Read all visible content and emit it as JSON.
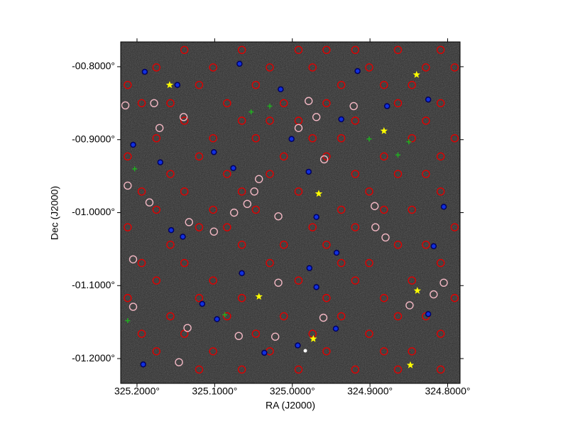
{
  "chart_data": {
    "type": "scatter",
    "x_label": "RA (J2000)",
    "y_label": "Dec (J2000)",
    "xlim": [
      325.221,
      324.784
    ],
    "ylim": [
      -1.234,
      -0.766
    ],
    "xticks": [
      {
        "value": 325.2,
        "label": "325.2000°"
      },
      {
        "value": 325.1,
        "label": "325.1000°"
      },
      {
        "value": 325.0,
        "label": "325.0000°"
      },
      {
        "value": 324.9,
        "label": "324.9000°"
      },
      {
        "value": 324.8,
        "label": "324.8000°"
      }
    ],
    "yticks": [
      {
        "value": -0.8,
        "label": "-00.8000°"
      },
      {
        "value": -0.9,
        "label": "-00.9000°"
      },
      {
        "value": -1.0,
        "label": "-01.0000°"
      },
      {
        "value": -1.1,
        "label": "-01.1000°"
      },
      {
        "value": -1.2,
        "label": "-01.2000°"
      }
    ],
    "background": "#2b2b2b",
    "series": [
      {
        "color": "#e00000",
        "marker": "circle-open",
        "x": [
          325.139,
          325.065,
          324.992,
          324.956,
          324.919,
          324.864,
          324.809,
          325.175,
          325.102,
          325.029,
          324.974,
          324.901,
          324.828,
          324.791,
          325.212,
          325.12,
          325.047,
          324.937,
          324.882,
          324.846,
          325.194,
          325.157,
          325.084,
          325.011,
          324.956,
          324.864,
          324.809,
          325.139,
          325.065,
          325.029,
          324.992,
          324.919,
          324.828,
          325.175,
          325.102,
          325.047,
          324.974,
          324.937,
          324.846,
          324.791,
          325.212,
          325.12,
          325.011,
          324.956,
          324.882,
          324.809,
          325.157,
          325.084,
          325.029,
          324.919,
          324.864,
          324.828,
          325.194,
          325.139,
          325.065,
          324.992,
          324.901,
          324.809,
          325.175,
          325.102,
          325.047,
          324.937,
          324.882,
          324.846,
          325.212,
          325.12,
          325.084,
          324.974,
          324.919,
          324.791,
          325.157,
          325.065,
          325.011,
          324.956,
          324.864,
          324.828,
          325.194,
          325.139,
          325.029,
          324.937,
          324.901,
          324.809,
          325.175,
          325.102,
          324.992,
          324.919,
          324.846,
          325.212,
          325.12,
          325.065,
          324.956,
          324.882,
          324.791,
          325.157,
          325.084,
          325.011,
          324.937,
          324.864,
          324.828,
          325.194,
          325.139,
          325.047,
          324.974,
          324.901,
          324.809,
          325.175,
          325.102,
          325.029,
          324.956,
          324.882,
          324.846,
          325.12,
          325.065,
          324.992,
          324.919,
          324.864,
          324.809
        ],
        "y": [
          -0.777,
          -0.777,
          -0.777,
          -0.777,
          -0.777,
          -0.777,
          -0.777,
          -0.801,
          -0.801,
          -0.801,
          -0.801,
          -0.801,
          -0.801,
          -0.801,
          -0.825,
          -0.825,
          -0.825,
          -0.825,
          -0.825,
          -0.825,
          -0.85,
          -0.85,
          -0.85,
          -0.85,
          -0.85,
          -0.85,
          -0.85,
          -0.874,
          -0.874,
          -0.874,
          -0.874,
          -0.874,
          -0.874,
          -0.898,
          -0.898,
          -0.898,
          -0.898,
          -0.898,
          -0.898,
          -0.898,
          -0.923,
          -0.923,
          -0.923,
          -0.923,
          -0.923,
          -0.923,
          -0.947,
          -0.947,
          -0.947,
          -0.947,
          -0.947,
          -0.947,
          -0.971,
          -0.971,
          -0.971,
          -0.971,
          -0.971,
          -0.971,
          -0.996,
          -0.996,
          -0.996,
          -0.996,
          -0.996,
          -0.996,
          -1.02,
          -1.02,
          -1.02,
          -1.02,
          -1.02,
          -1.02,
          -1.044,
          -1.044,
          -1.044,
          -1.044,
          -1.044,
          -1.044,
          -1.069,
          -1.069,
          -1.069,
          -1.069,
          -1.069,
          -1.069,
          -1.093,
          -1.093,
          -1.093,
          -1.093,
          -1.093,
          -1.117,
          -1.117,
          -1.117,
          -1.117,
          -1.117,
          -1.117,
          -1.142,
          -1.142,
          -1.142,
          -1.142,
          -1.142,
          -1.142,
          -1.166,
          -1.166,
          -1.166,
          -1.166,
          -1.166,
          -1.166,
          -1.19,
          -1.19,
          -1.19,
          -1.19,
          -1.19,
          -1.19,
          -1.215,
          -1.215,
          -1.215,
          -1.215,
          -1.215,
          -1.215
        ]
      },
      {
        "color": "#f4b8c4",
        "marker": "circle-open",
        "x": [
          325.215,
          325.178,
          325.14,
          325.171,
          325.212,
          325.184,
          325.205,
          325.135,
          325.205,
          325.146,
          325.018,
          325.043,
          325.049,
          325.075,
          325.058,
          324.992,
          324.979,
          324.921,
          324.959,
          324.894,
          324.893,
          324.88,
          324.805,
          324.849,
          324.818,
          325.022,
          325.069,
          324.96,
          325.133,
          325.101,
          324.969,
          325.018
        ],
        "y": [
          -0.853,
          -0.85,
          -0.869,
          -0.884,
          -0.963,
          -0.986,
          -1.064,
          -1.158,
          -1.129,
          -1.205,
          -1.096,
          -0.954,
          -0.971,
          -1.0,
          -0.988,
          -0.884,
          -0.847,
          -0.854,
          -0.927,
          -0.991,
          -1.02,
          -1.034,
          -1.096,
          -1.127,
          -1.112,
          -1.17,
          -1.169,
          -1.144,
          -1.013,
          -1.026,
          -0.869,
          -1.005
        ]
      },
      {
        "color": "#1030e0",
        "marker": "dot",
        "x": [
          325.19,
          325.148,
          325.068,
          325.015,
          324.937,
          324.916,
          325.205,
          325.17,
          325.101,
          325.076,
          324.979,
          325.001,
          325.156,
          325.141,
          325.065,
          325.116,
          325.097,
          324.944,
          325.036,
          324.993,
          325.192,
          324.969,
          324.825,
          324.818,
          324.805,
          324.878,
          324.969,
          324.943,
          324.978,
          324.825
        ],
        "y": [
          -0.807,
          -0.825,
          -0.796,
          -0.831,
          -0.872,
          -0.806,
          -0.907,
          -0.931,
          -0.917,
          -0.939,
          -0.944,
          -0.899,
          -1.024,
          -1.033,
          -1.083,
          -1.125,
          -1.146,
          -1.159,
          -1.192,
          -1.182,
          -1.208,
          -1.102,
          -1.139,
          -1.046,
          -0.992,
          -0.854,
          -1.006,
          -1.055,
          -1.076,
          -0.845
        ]
      },
      {
        "color": "#20b020",
        "marker": "cross",
        "x": [
          325.053,
          325.029,
          324.901,
          324.864,
          325.203,
          325.087,
          325.212,
          324.85
        ],
        "y": [
          -0.862,
          -0.854,
          -0.899,
          -0.921,
          -0.94,
          -1.14,
          -1.148,
          -0.903
        ]
      },
      {
        "color": "#ffff00",
        "marker": "star",
        "x": [
          325.158,
          324.84,
          324.882,
          324.966,
          325.043,
          324.839,
          324.973,
          324.848
        ],
        "y": [
          -0.825,
          -0.811,
          -0.888,
          -0.974,
          -1.115,
          -1.107,
          -1.173,
          -1.209
        ]
      }
    ]
  }
}
